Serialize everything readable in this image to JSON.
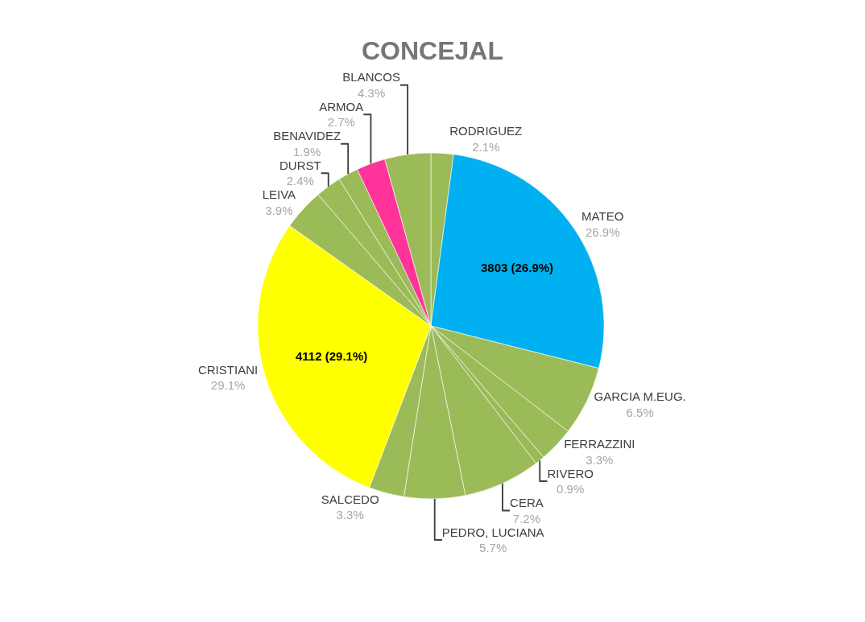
{
  "chart_data": {
    "type": "pie",
    "title": "CONCEJAL",
    "categories": [
      "RODRIGUEZ",
      "MATEO",
      "GARCIA M.EUG.",
      "FERRAZZINI",
      "RIVERO",
      "CERA",
      "PEDRO, LUCIANA",
      "SALCEDO",
      "CRISTIANI",
      "LEIVA",
      "DURST",
      "BENAVIDEZ",
      "ARMOA",
      "BLANCOS"
    ],
    "values": [
      2.1,
      26.9,
      6.5,
      3.3,
      0.9,
      7.2,
      5.7,
      3.3,
      29.1,
      3.9,
      2.4,
      1.9,
      2.7,
      4.3
    ],
    "colors": [
      "#9bbb59",
      "#00b0f0",
      "#9bbb59",
      "#9bbb59",
      "#9bbb59",
      "#9bbb59",
      "#9bbb59",
      "#9bbb59",
      "#ffff00",
      "#9bbb59",
      "#9bbb59",
      "#9bbb59",
      "#ff3399",
      "#9bbb59"
    ],
    "value_labels": [
      "2.1%",
      "26.9%",
      "6.5%",
      "3.3%",
      "0.9%",
      "7.2%",
      "5.7%",
      "3.3%",
      "29.1%",
      "3.9%",
      "2.4%",
      "1.9%",
      "2.7%",
      "4.3%"
    ],
    "annotations": [
      {
        "text": "3803 (26.9%)",
        "x": "MATEO"
      },
      {
        "text": "4112 (29.1%)",
        "x": "CRISTIANI"
      }
    ]
  }
}
